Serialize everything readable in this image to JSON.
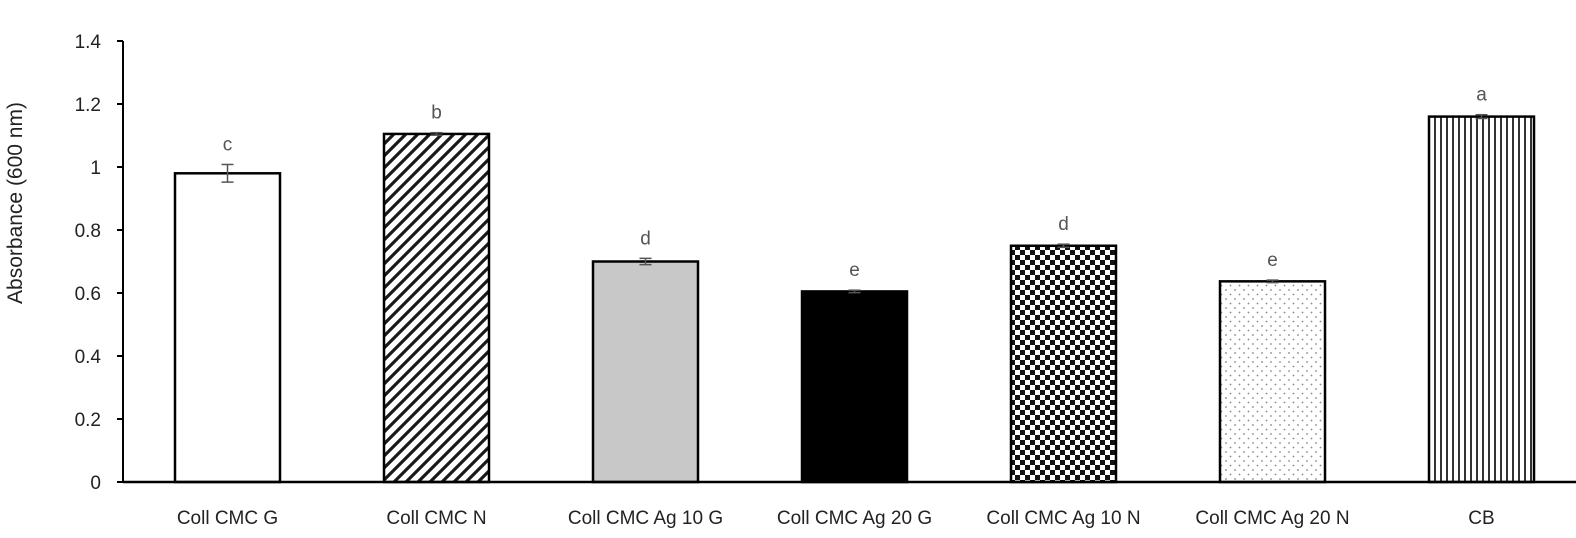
{
  "chart_data": {
    "type": "bar",
    "ylabel": "Absorbance (600 nm)",
    "ylim": [
      0,
      1.4
    ],
    "yticks": [
      "0",
      "0.2",
      "0.4",
      "0.6",
      "0.8",
      "1",
      "1.2",
      "1.4"
    ],
    "categories": [
      "Coll CMC G",
      "Coll CMC N",
      "Coll CMC Ag 10 G",
      "Coll CMC Ag 20 G",
      "Coll CMC Ag 10 N",
      "Coll CMC Ag 20 N",
      "CB"
    ],
    "values": [
      0.98,
      1.105,
      0.7,
      0.605,
      0.75,
      0.637,
      1.16
    ],
    "errors": [
      0.028,
      0.004,
      0.01,
      0.004,
      0.005,
      0.004,
      0.006
    ],
    "significance_letters": [
      "c",
      "b",
      "d",
      "e",
      "d",
      "e",
      "a"
    ],
    "patterns": [
      "none",
      "diagonal-stripes",
      "light-gray",
      "black",
      "checkerboard",
      "dots",
      "vertical-stripes"
    ],
    "grid": false,
    "legend": "none"
  }
}
